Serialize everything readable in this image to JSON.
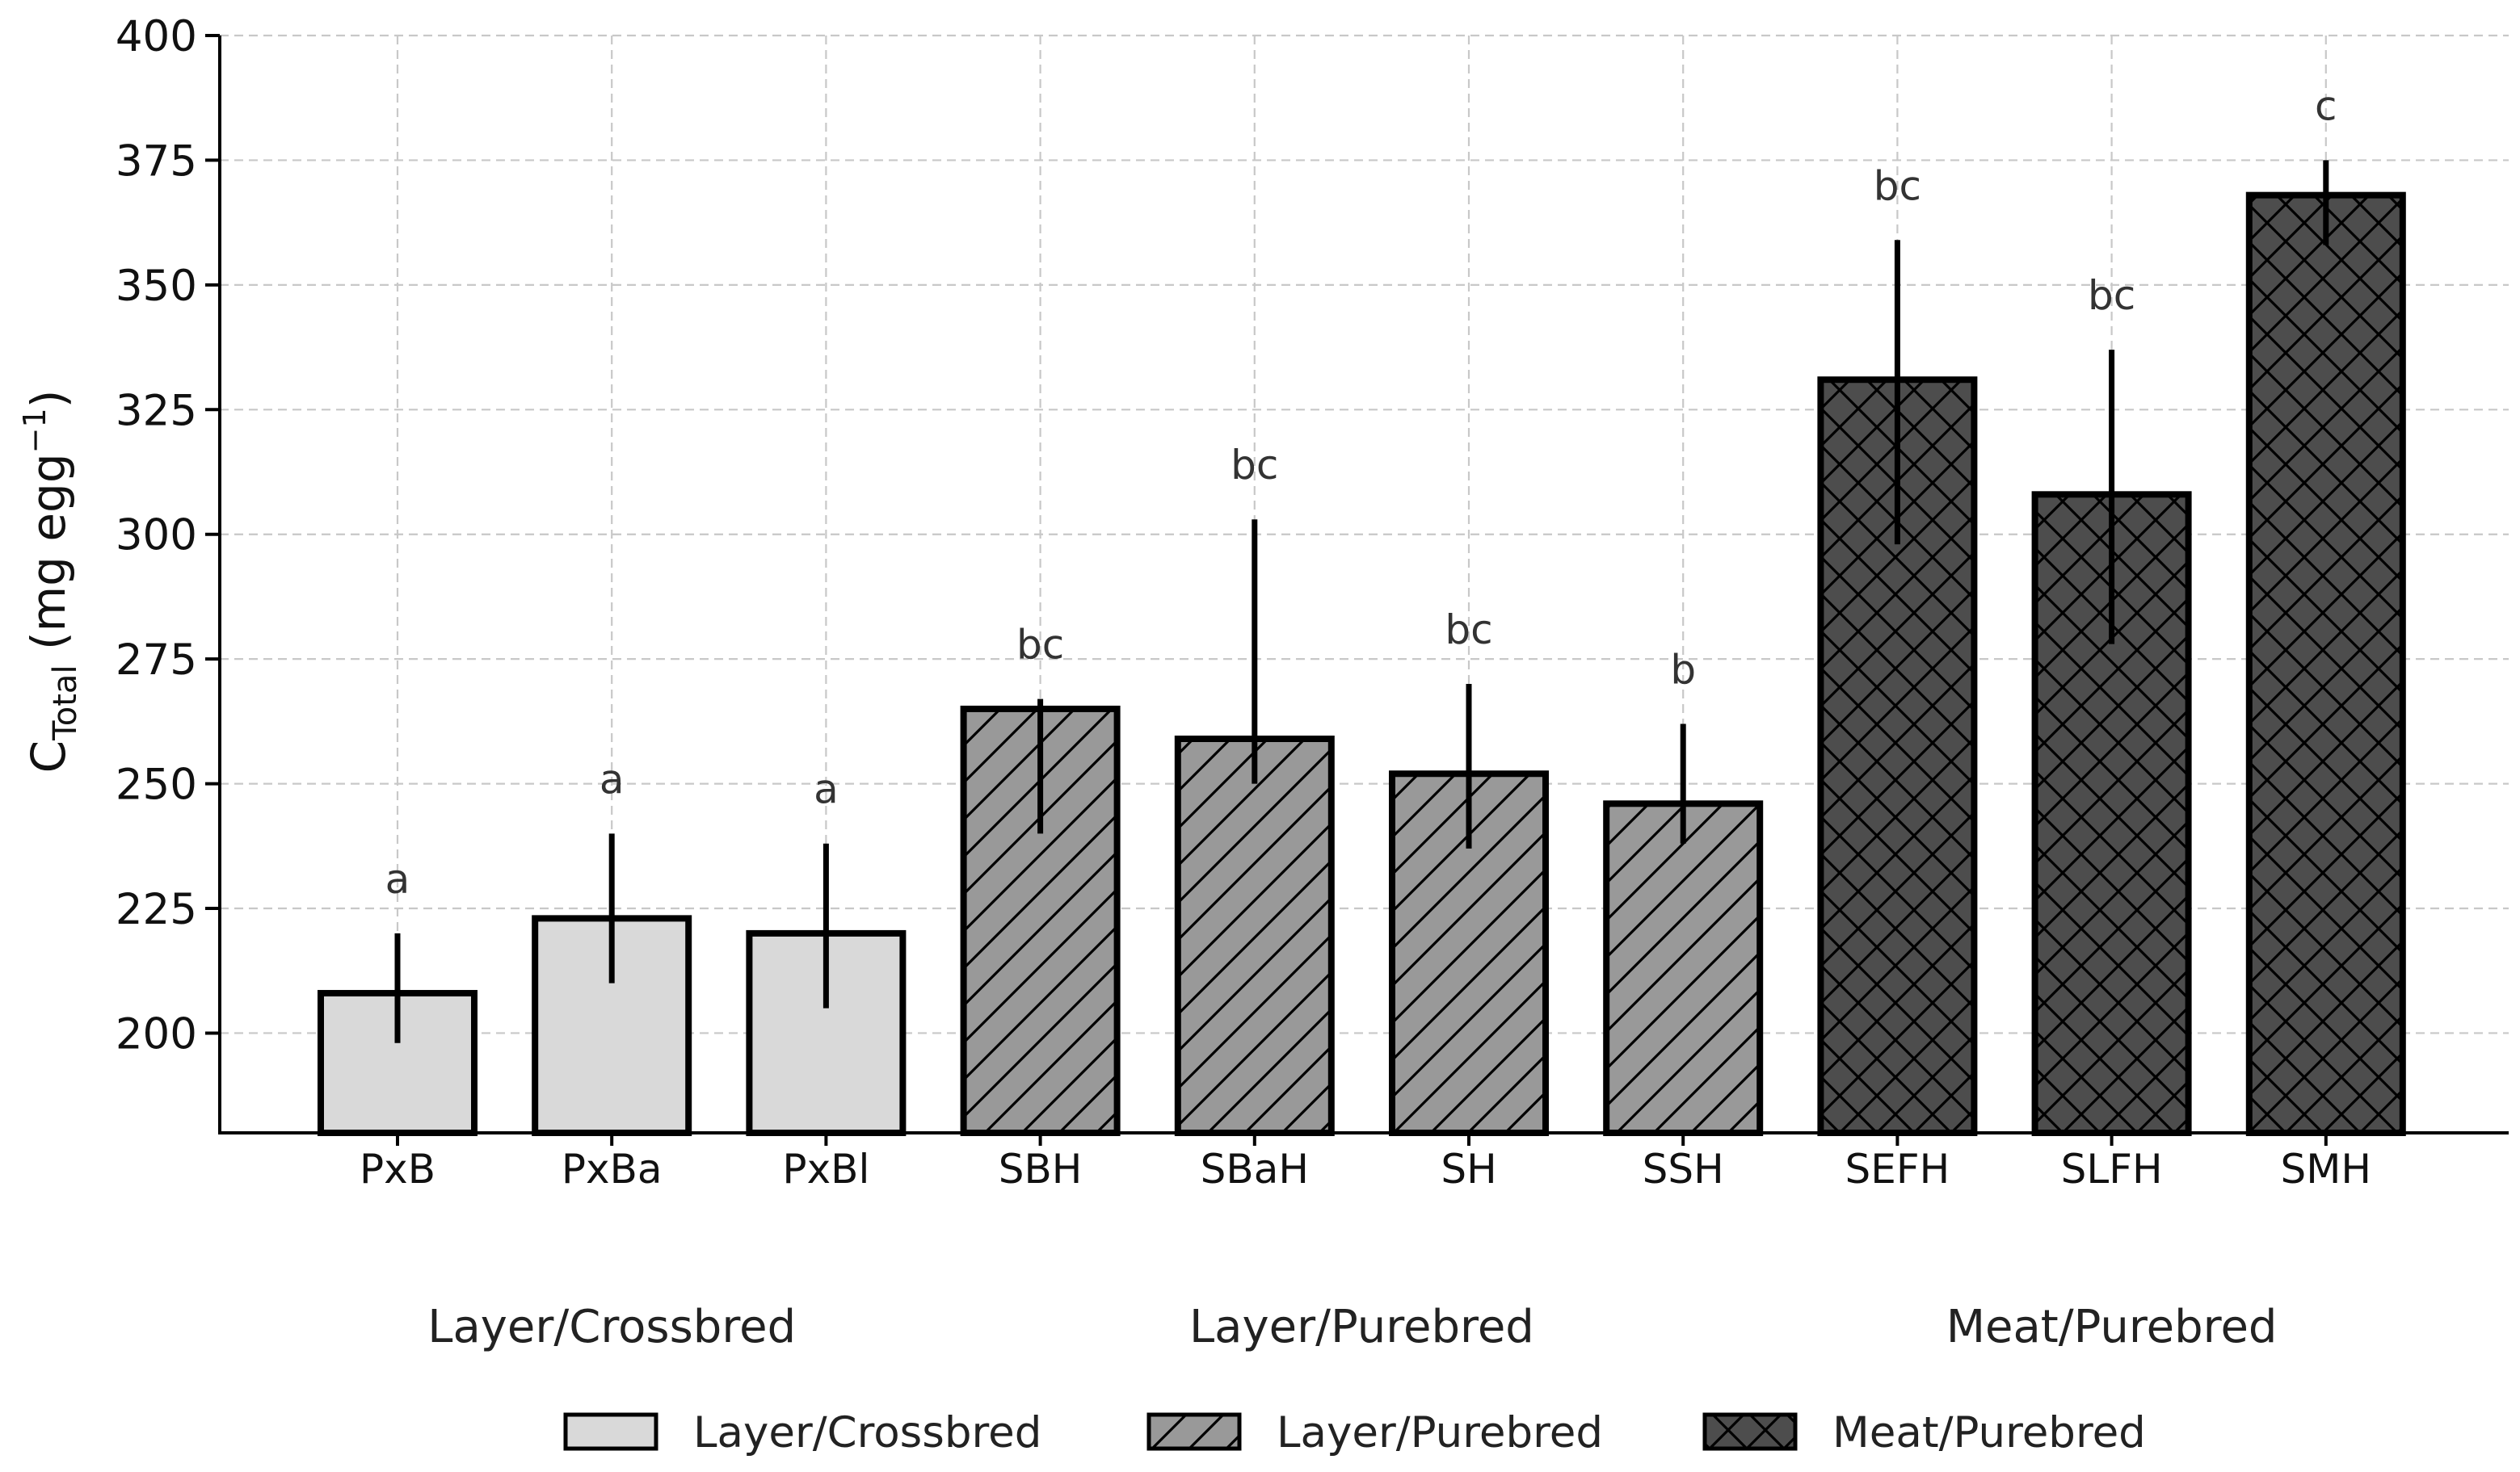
{
  "chart_data": {
    "type": "bar",
    "categories": [
      "PxB",
      "PxBa",
      "PxBl",
      "SBH",
      "SBaH",
      "SH",
      "SSH",
      "SEFH",
      "SLFH",
      "SMH"
    ],
    "values": [
      208,
      223,
      220,
      265,
      259,
      252,
      246,
      331,
      308,
      368
    ],
    "error_low": [
      198,
      210,
      205,
      240,
      250,
      237,
      238,
      298,
      278,
      358
    ],
    "error_high": [
      220,
      240,
      238,
      267,
      303,
      270,
      262,
      359,
      337,
      375
    ],
    "significance": [
      "a",
      "a",
      "a",
      "bc",
      "bc",
      "bc",
      "b",
      "bc",
      "bc",
      "c"
    ],
    "category_groups": [
      "Layer/Crossbred",
      "Layer/Crossbred",
      "Layer/Crossbred",
      "Layer/Purebred",
      "Layer/Purebred",
      "Layer/Purebred",
      "Layer/Purebred",
      "Meat/Purebred",
      "Meat/Purebred",
      "Meat/Purebred"
    ],
    "groups": [
      {
        "name": "Layer/Crossbred",
        "fill": "#d9d9d9",
        "hatch": "none",
        "center_category_index": 1
      },
      {
        "name": "Layer/Purebred",
        "fill": "#999999",
        "hatch": "diagonal",
        "center_category_index": 4.5
      },
      {
        "name": "Meat/Purebred",
        "fill": "#4d4d4d",
        "hatch": "crosshatch",
        "center_category_index": 8
      }
    ],
    "y_ticks": [
      200,
      225,
      250,
      275,
      300,
      325,
      350,
      375,
      400
    ],
    "ylim": [
      180,
      400
    ],
    "ylabel": {
      "main": "C",
      "sub": "Total",
      "unit_open": " (mg egg",
      "sup": "−1",
      "unit_close": ")"
    },
    "xlabel": "",
    "title": "",
    "grid": true,
    "legend": {
      "position": "bottom",
      "entries": [
        "Layer/Crossbred",
        "Layer/Purebred",
        "Meat/Purebred"
      ]
    }
  }
}
